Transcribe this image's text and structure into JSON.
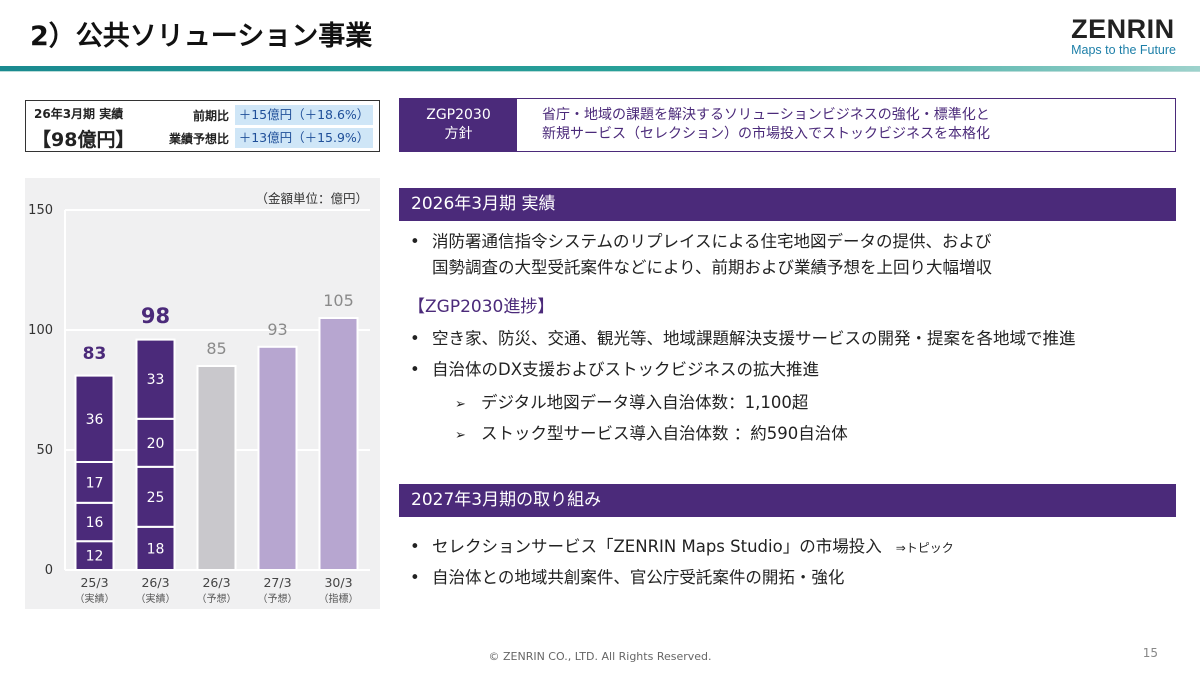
{
  "header": {
    "title": "2）公共ソリューション事業",
    "brand": "ZENRIN",
    "tagline": "Maps to the Future"
  },
  "summary": {
    "label": "26年3月期 実績",
    "value": "【98億円】",
    "rows": [
      {
        "key": "前期比",
        "value": "＋15億円（＋18.6%）"
      },
      {
        "key": "業績予想比",
        "value": "＋13億円（＋15.9%）"
      }
    ]
  },
  "policy": {
    "head_line1": "ZGP2030",
    "head_line2": "方針",
    "line1": "省庁・地域の課題を解決するソリューションビジネスの強化・標準化と",
    "line2": "新規サービス（セレクション）の市場投入でストックビジネスを本格化"
  },
  "chart_data": {
    "type": "bar",
    "unit_note": "（金額単位：億円）",
    "ylim": [
      0,
      150
    ],
    "yticks": [
      0,
      50,
      100,
      150
    ],
    "colors": {
      "actual": "#4b2a7a",
      "forecast": "#c9c8cc",
      "plan": "#b7a6d0",
      "total_actual": "#4b2a7a",
      "total_other": "#8a8a8a"
    },
    "categories": [
      {
        "label": "25/3",
        "sub": "（実績）",
        "total": 83,
        "kind": "actual",
        "segments": [
          12,
          16,
          17,
          36
        ]
      },
      {
        "label": "26/3",
        "sub": "（実績）",
        "total": 98,
        "kind": "actual",
        "segments": [
          18,
          25,
          20,
          33
        ]
      },
      {
        "label": "26/3",
        "sub": "（予想）",
        "total": 85,
        "kind": "forecast",
        "segments": []
      },
      {
        "label": "27/3",
        "sub": "（予想）",
        "total": 93,
        "kind": "plan",
        "segments": []
      },
      {
        "label": "30/3",
        "sub": "（指標）",
        "total": 105,
        "kind": "plan",
        "segments": []
      }
    ]
  },
  "results": {
    "title": "2026年3月期 実績",
    "bullet1_line1": "消防署通信指令システムのリプレイスによる住宅地図データの提供、および",
    "bullet1_line2": "国勢調査の大型受託案件などにより、前期および業績予想を上回り大幅増収",
    "progress_title": "【ZGP2030進捗】",
    "bullet2": "空き家、防災、交通、観光等、地域課題解決支援サービスの開発・提案を各地域で推進",
    "bullet3": "自治体のDX支援およびストックビジネスの拡大推進",
    "sub1": "デジタル地図データ導入自治体数：1,100超",
    "sub2": "ストック型サービス導入自治体数 ：約590自治体"
  },
  "plans": {
    "title": "2027年3月期の取り組み",
    "bullet1": "セレクションサービス「ZENRIN Maps Studio」の市場投入",
    "topic": "⇒トピック",
    "bullet2": "自治体との地域共創案件、官公庁受託案件の開拓・強化"
  },
  "footer": {
    "copyright": "© ZENRIN CO., LTD. All Rights Reserved.",
    "page": "15"
  }
}
